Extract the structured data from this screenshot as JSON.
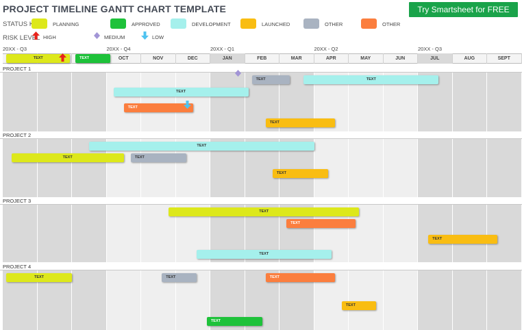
{
  "title": "PROJECT TIMELINE GANTT CHART TEMPLATE",
  "cta": "Try Smartsheet for FREE",
  "status_key": {
    "label": "STATUS KEY",
    "items": [
      {
        "label": "PLANNING",
        "color": "#dde81b"
      },
      {
        "label": "APPROVED",
        "color": "#1ec23a"
      },
      {
        "label": "DEVELOPMENT",
        "color": "#a5f0ec"
      },
      {
        "label": "LAUNCHED",
        "color": "#f9bd12"
      },
      {
        "label": "OTHER",
        "color": "#a9b3c1"
      },
      {
        "label": "OTHER",
        "color": "#fb7e3e"
      }
    ]
  },
  "risk_key": {
    "label": "RISK LEVEL",
    "items": [
      {
        "label": "HIGH",
        "icon": "arrow-up-icon",
        "color": "#e8231b"
      },
      {
        "label": "MEDIUM",
        "icon": "diamond-icon",
        "color": "#a295d6"
      },
      {
        "label": "LOW",
        "icon": "arrow-down-icon",
        "color": "#4fc3f0"
      }
    ]
  },
  "chart_data": {
    "type": "gantt",
    "quarters": [
      "20XX - Q3",
      "20XX - Q4",
      "20XX - Q1",
      "20XX - Q2",
      "20XX - Q3"
    ],
    "months": [
      "JUL",
      "AUG",
      "SEPT",
      "OCT",
      "NOV",
      "DEC",
      "JAN",
      "FEB",
      "MAR",
      "APR",
      "MAY",
      "JUN",
      "JUL",
      "AUG",
      "SEPT"
    ],
    "header_tasks": [
      {
        "label": "TEXT",
        "start": 0.1,
        "end": 1.95,
        "status": "PLANNING",
        "risk": "HIGH"
      },
      {
        "label": "TEXT",
        "start": 2.1,
        "end": 3.1,
        "status": "APPROVED"
      }
    ],
    "projects": [
      {
        "name": "PROJECT 1",
        "tasks": [
          {
            "label": "TEXT",
            "row": 0,
            "start": 7.2,
            "end": 8.3,
            "status": "OTHER (GRAY)"
          },
          {
            "label": "TEXT",
            "row": 0,
            "start": 8.7,
            "end": 12.6,
            "status": "DEVELOPMENT"
          },
          {
            "label": "TEXT",
            "row": 1,
            "start": 3.2,
            "end": 7.1,
            "status": "DEVELOPMENT"
          },
          {
            "label": "TEXT",
            "row": 2,
            "start": 3.5,
            "end": 5.5,
            "status": "OTHER (ORANGE)",
            "risk": "LOW"
          },
          {
            "label": "TEXT",
            "row": 3,
            "start": 7.6,
            "end": 9.6,
            "status": "LAUNCHED"
          }
        ],
        "milestones": [
          {
            "at": 6.8,
            "risk": "MEDIUM"
          }
        ]
      },
      {
        "name": "PROJECT 2",
        "tasks": [
          {
            "label": "TEXT",
            "row": 0,
            "start": 2.5,
            "end": 9.0,
            "status": "DEVELOPMENT"
          },
          {
            "label": "TEXT",
            "row": 1,
            "start": 0.25,
            "end": 3.5,
            "status": "PLANNING"
          },
          {
            "label": "TEXT",
            "row": 1,
            "start": 3.7,
            "end": 5.3,
            "status": "OTHER (GRAY)"
          },
          {
            "label": "TEXT",
            "row": 2,
            "start": 7.8,
            "end": 9.4,
            "status": "LAUNCHED"
          }
        ]
      },
      {
        "name": "PROJECT 3",
        "tasks": [
          {
            "label": "TEXT",
            "row": 0,
            "start": 4.8,
            "end": 10.3,
            "status": "PLANNING"
          },
          {
            "label": "TEXT",
            "row": 1,
            "start": 8.2,
            "end": 10.2,
            "status": "OTHER (ORANGE)"
          },
          {
            "label": "TEXT",
            "row": 2,
            "start": 12.3,
            "end": 14.3,
            "status": "LAUNCHED"
          },
          {
            "label": "TEXT",
            "row": 3,
            "start": 5.6,
            "end": 9.5,
            "status": "DEVELOPMENT"
          }
        ]
      },
      {
        "name": "PROJECT 4",
        "tasks": [
          {
            "label": "TEXT",
            "row": 0,
            "start": 0.1,
            "end": 2.0,
            "status": "PLANNING"
          },
          {
            "label": "TEXT",
            "row": 0,
            "start": 4.6,
            "end": 5.6,
            "status": "OTHER (GRAY)"
          },
          {
            "label": "TEXT",
            "row": 0,
            "start": 7.6,
            "end": 9.6,
            "status": "OTHER (ORANGE)"
          },
          {
            "label": "TEXT",
            "row": 2,
            "start": 9.8,
            "end": 10.8,
            "status": "LAUNCHED"
          },
          {
            "label": "TEXT",
            "row": 3,
            "start": 5.9,
            "end": 7.5,
            "status": "APPROVED"
          }
        ]
      }
    ]
  }
}
